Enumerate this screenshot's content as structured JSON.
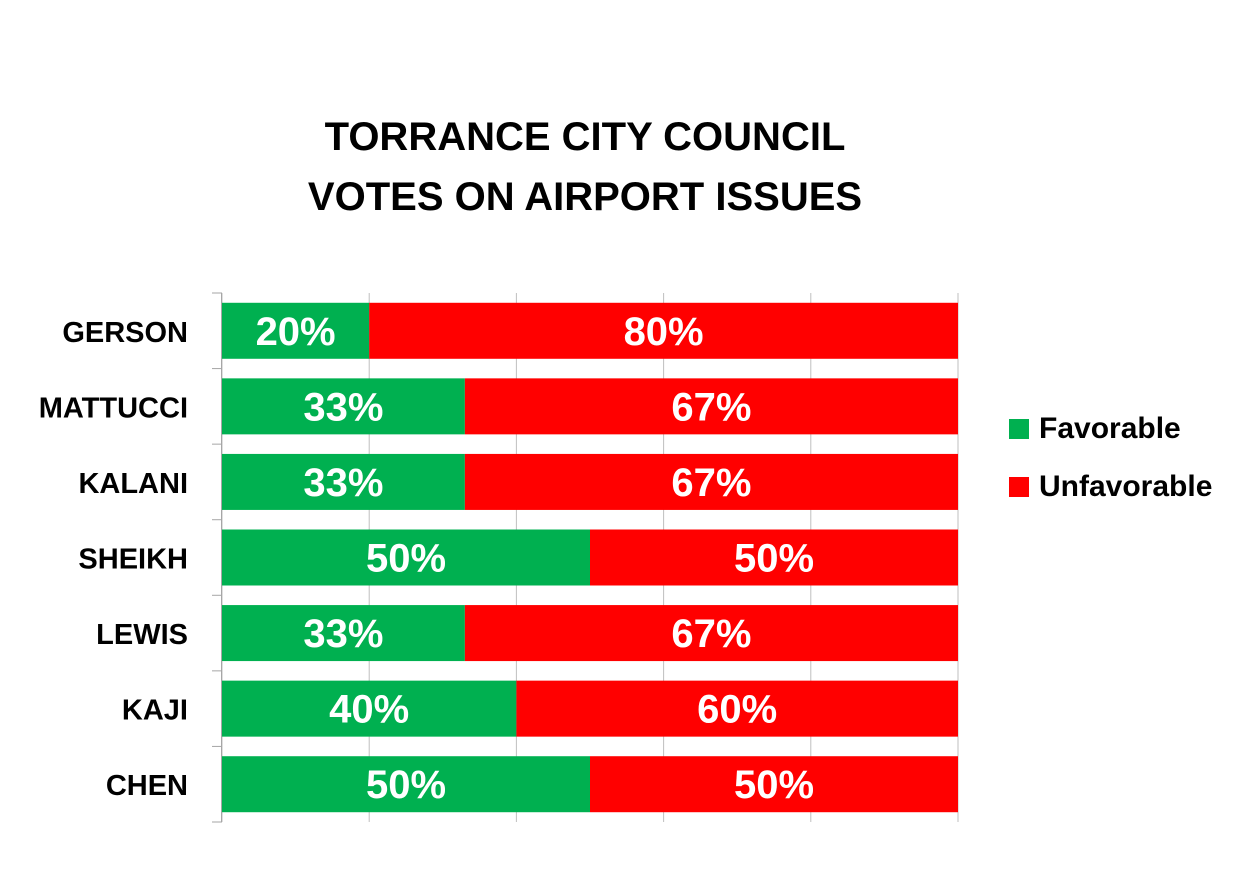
{
  "chart_data": {
    "type": "bar",
    "orientation": "horizontal",
    "stacked": true,
    "percent": true,
    "title": [
      "TORRANCE CITY COUNCIL",
      "VOTES ON AIRPORT ISSUES"
    ],
    "categories": [
      "GERSON",
      "MATTUCCI",
      "KALANI",
      "SHEIKH",
      "LEWIS",
      "KAJI",
      "CHEN"
    ],
    "series": [
      {
        "name": "Favorable",
        "color": "#00b050",
        "values": [
          20,
          33,
          33,
          50,
          33,
          40,
          50
        ]
      },
      {
        "name": "Unfavorable",
        "color": "#ff0000",
        "values": [
          80,
          67,
          67,
          50,
          67,
          60,
          50
        ]
      }
    ],
    "xlim": [
      0,
      100
    ],
    "grid": true,
    "legend": "right"
  }
}
